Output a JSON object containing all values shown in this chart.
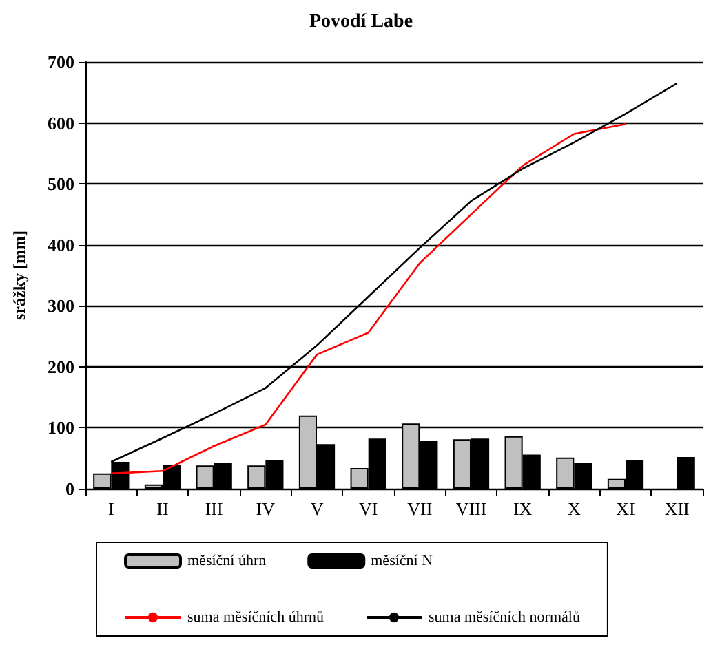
{
  "chart_data": {
    "type": "bar",
    "title": "Povodí Labe",
    "ylabel": "srážky [mm]",
    "categories": [
      "I",
      "II",
      "III",
      "IV",
      "V",
      "VI",
      "VII",
      "VIII",
      "IX",
      "X",
      "XI",
      "XII"
    ],
    "series": [
      {
        "name": "měsíční úhrn",
        "color": "#c0c0c0",
        "values": [
          25,
          7,
          38,
          38,
          120,
          34,
          107,
          81,
          86,
          51,
          16,
          null
        ]
      },
      {
        "name": "měsíční N",
        "color": "#000000",
        "values": [
          44,
          39,
          43,
          47,
          73,
          82,
          78,
          82,
          56,
          43,
          47,
          52
        ]
      },
      {
        "name": "suma měsíčních úhrnů",
        "type": "line",
        "color": "#ff0000",
        "values": [
          25,
          29,
          70,
          105,
          220,
          256,
          370,
          450,
          530,
          582,
          598,
          null
        ]
      },
      {
        "name": "suma měsíčních normálů",
        "type": "line",
        "color": "#000000",
        "values": [
          44,
          83,
          123,
          165,
          235,
          315,
          395,
          472,
          525,
          568,
          615,
          665
        ]
      }
    ],
    "ylim": [
      0,
      700
    ],
    "yticks": [
      0,
      100,
      200,
      300,
      400,
      500,
      600,
      700
    ],
    "grid": "y",
    "legend": "bottom",
    "marker": "none",
    "line_style": "solid"
  }
}
